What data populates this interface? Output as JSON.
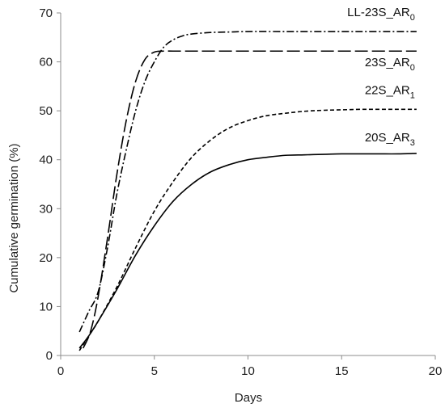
{
  "chart_data": {
    "type": "line",
    "title": "",
    "xlabel": "Days",
    "ylabel": "Cumulative germination (%)",
    "xlim": [
      0,
      20
    ],
    "ylim": [
      0,
      70
    ],
    "xticks": [
      "0",
      "5",
      "10",
      "15",
      "20"
    ],
    "yticks": [
      "0",
      "10",
      "20",
      "30",
      "40",
      "50",
      "60",
      "70"
    ],
    "grid": false,
    "legend": "direct labels at right end of each line",
    "series": [
      {
        "name": "LL-23S_AR",
        "name_subscript": "0",
        "style": "dash-dot",
        "x": [
          1,
          1.5,
          2,
          2.5,
          3,
          3.5,
          4,
          4.5,
          5,
          5.5,
          6,
          6.5,
          7,
          8,
          9,
          10,
          12,
          14,
          16,
          18,
          19
        ],
        "y": [
          4.8,
          9,
          13,
          22,
          33,
          42,
          50,
          56,
          60,
          63,
          64.5,
          65.3,
          65.7,
          66,
          66.1,
          66.2,
          66.2,
          66.2,
          66.2,
          66.2,
          66.2
        ]
      },
      {
        "name": "23S_AR",
        "name_subscript": "0",
        "style": "long-dash",
        "x": [
          1.2,
          1.6,
          2,
          2.5,
          3,
          3.5,
          4,
          4.5,
          5,
          5.5,
          6,
          7,
          8,
          10,
          12,
          14,
          16,
          18,
          19
        ],
        "y": [
          1.5,
          5,
          12,
          24,
          37,
          48,
          56,
          60.5,
          62,
          62.2,
          62.2,
          62.2,
          62.2,
          62.2,
          62.2,
          62.2,
          62.2,
          62.2,
          62.2
        ]
      },
      {
        "name": "22S_AR",
        "name_subscript": "1",
        "style": "short-dash",
        "x": [
          1,
          1.5,
          2,
          3,
          4,
          5,
          6,
          7,
          8,
          9,
          10,
          11,
          12,
          13,
          14,
          15,
          16,
          17,
          18,
          19
        ],
        "y": [
          1,
          4,
          7,
          14,
          22,
          29.5,
          35.5,
          40.5,
          44,
          46.5,
          48,
          49,
          49.5,
          49.9,
          50.1,
          50.2,
          50.3,
          50.3,
          50.3,
          50.3
        ]
      },
      {
        "name": "20S_AR",
        "name_subscript": "3",
        "style": "solid",
        "x": [
          1,
          1.5,
          2,
          3,
          4,
          5,
          6,
          7,
          8,
          9,
          10,
          11,
          12,
          13,
          14,
          15,
          16,
          17,
          18,
          19
        ],
        "y": [
          1.5,
          4,
          7,
          13.5,
          20.5,
          26.5,
          31.5,
          35,
          37.5,
          39,
          40,
          40.5,
          40.9,
          41,
          41.1,
          41.2,
          41.2,
          41.2,
          41.2,
          41.3
        ]
      }
    ]
  }
}
